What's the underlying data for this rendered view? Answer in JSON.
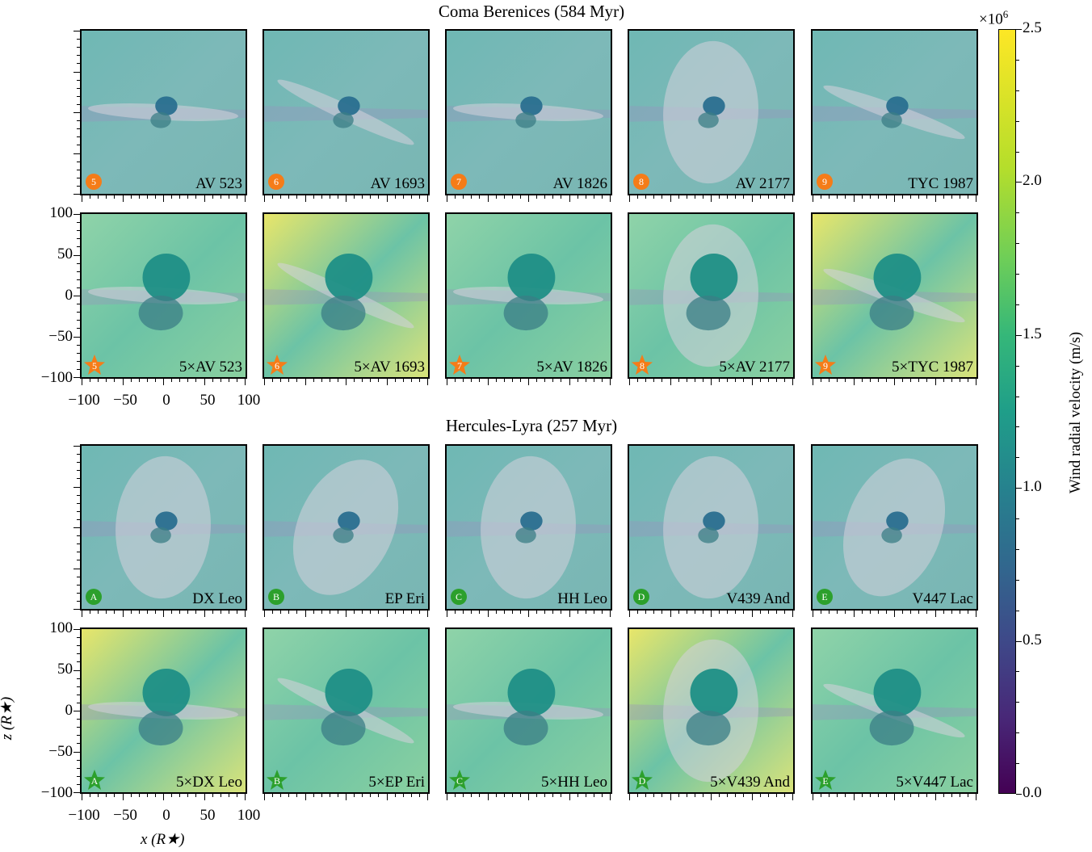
{
  "titles": {
    "group1": "Coma Berenices (584 Myr)",
    "group2": "Hercules-Lyra (257 Myr)"
  },
  "axes": {
    "xlabel": "x (R★)",
    "ylabel": "z (R★)",
    "yticks": [
      "100",
      "50",
      "0",
      "−50",
      "−100"
    ],
    "xticks": [
      "−100",
      "−50",
      "0",
      "50",
      "100"
    ]
  },
  "colorbar": {
    "label": "Wind radial velocity (m/s)",
    "multiplier": "×10",
    "multiplier_exp": "6",
    "ticks": [
      "2.5",
      "2.0",
      "1.5",
      "1.0",
      "0.5",
      "0.0"
    ],
    "colors": [
      "#440154",
      "#3e4989",
      "#26828e",
      "#35b779",
      "#fde725"
    ]
  },
  "panels": {
    "row1": [
      {
        "label": "AV 523",
        "marker": "5"
      },
      {
        "label": "AV 1693",
        "marker": "6"
      },
      {
        "label": "AV 1826",
        "marker": "7"
      },
      {
        "label": "AV 2177",
        "marker": "8"
      },
      {
        "label": "TYC 1987",
        "marker": "9"
      }
    ],
    "row2": [
      {
        "label": "5×AV 523",
        "marker": "5"
      },
      {
        "label": "5×AV 1693",
        "marker": "6"
      },
      {
        "label": "5×AV 1826",
        "marker": "7"
      },
      {
        "label": "5×AV 2177",
        "marker": "8"
      },
      {
        "label": "5×TYC 1987",
        "marker": "9"
      }
    ],
    "row3": [
      {
        "label": "DX Leo",
        "marker": "A"
      },
      {
        "label": "EP Eri",
        "marker": "B"
      },
      {
        "label": "HH Leo",
        "marker": "C"
      },
      {
        "label": "V439 And",
        "marker": "D"
      },
      {
        "label": "V447 Lac",
        "marker": "E"
      }
    ],
    "row4": [
      {
        "label": "5×DX Leo",
        "marker": "A"
      },
      {
        "label": "5×EP Eri",
        "marker": "B"
      },
      {
        "label": "5×HH Leo",
        "marker": "C"
      },
      {
        "label": "5×V439 And",
        "marker": "D"
      },
      {
        "label": "5×V447 Lac",
        "marker": "E"
      }
    ]
  },
  "marker_colors": {
    "coma": "#f57c18",
    "herc": "#2ca02c"
  }
}
